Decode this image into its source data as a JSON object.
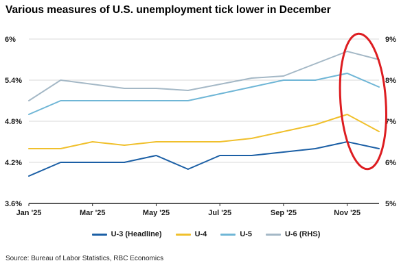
{
  "title": "Various measures of U.S. unemployment tick lower in December",
  "source": "Source: Bureau of Labor Statistics, RBC Economics",
  "chart_data": {
    "type": "line",
    "x": [
      "Jan '25",
      "Feb '25",
      "Mar '25",
      "Apr '25",
      "May '25",
      "Jun '25",
      "Jul '25",
      "Aug '25",
      "Sep '25",
      "Oct '25",
      "Nov '25",
      "Dec '25"
    ],
    "x_tick_step": 2,
    "left_axis": {
      "tick_values": [
        3.6,
        4.2,
        4.8,
        5.4,
        6.0
      ],
      "tick_labels": [
        "3.6%",
        "4.2%",
        "4.8%",
        "5.4%",
        "6%"
      ],
      "min": 3.6,
      "max": 6.0
    },
    "right_axis": {
      "tick_values": [
        5,
        6,
        7,
        8,
        9
      ],
      "tick_labels": [
        "5%",
        "6%",
        "7%",
        "8%",
        "9%"
      ],
      "min": 5,
      "max": 9
    },
    "grid": true,
    "legend_position": "bottom",
    "series": [
      {
        "name": "U-3 (Headline)",
        "axis": "left",
        "color": "#1b5fa5",
        "values": [
          4.0,
          4.2,
          4.2,
          4.2,
          4.3,
          4.1,
          4.3,
          4.3,
          4.35,
          4.4,
          4.5,
          4.4
        ]
      },
      {
        "name": "U-4",
        "axis": "left",
        "color": "#f0c02c",
        "values": [
          4.4,
          4.4,
          4.5,
          4.45,
          4.5,
          4.5,
          4.5,
          4.55,
          4.65,
          4.75,
          4.9,
          4.65
        ]
      },
      {
        "name": "U-5",
        "axis": "left",
        "color": "#6fb6d6",
        "values": [
          4.9,
          5.1,
          5.1,
          5.1,
          5.1,
          5.1,
          5.2,
          5.3,
          5.4,
          5.4,
          5.5,
          5.3
        ]
      },
      {
        "name": "U-6 (RHS)",
        "axis": "right",
        "color": "#a4b8c6",
        "values": [
          7.5,
          8.0,
          7.9,
          7.8,
          7.8,
          7.75,
          7.9,
          8.05,
          8.1,
          8.4,
          8.7,
          8.5
        ]
      }
    ],
    "annotation": {
      "type": "ellipse",
      "color": "#dd1d21",
      "x_index_start": 10,
      "x_index_end": 11,
      "note": "highlights November-December decline"
    }
  }
}
